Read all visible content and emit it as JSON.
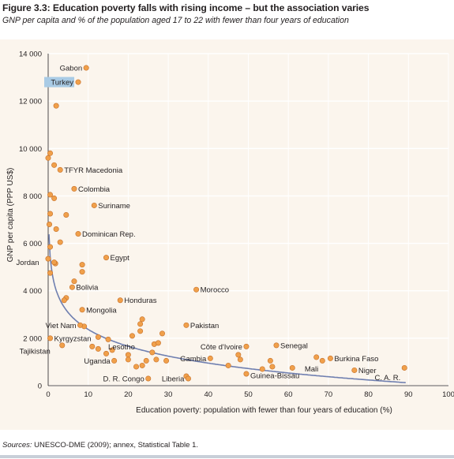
{
  "figure": {
    "title": "Figure 3.3: Education poverty falls with rising income – but the association varies",
    "subtitle": "GNP per capita and % of the population aged 17 to 22 with fewer than four years of education",
    "source_prefix": "Sources:",
    "source_text": " UNESCO-DME (2009); annex, Statistical Table 1."
  },
  "colors": {
    "point_fill": "#f0a04b",
    "point_stroke": "#c6702a",
    "curve": "#6f7fb0",
    "grid": "#ffffff",
    "plot_bg": "#fbf5ed",
    "highlight": "#a9cbe5"
  },
  "chart_data": {
    "type": "scatter",
    "xlabel": "Education poverty: population with fewer than four years of education (%)",
    "ylabel": "GNP per capita (PPP US$)",
    "xlim": [
      0,
      100
    ],
    "ylim": [
      0,
      14000
    ],
    "x_ticks": [
      0,
      10,
      20,
      30,
      40,
      50,
      60,
      70,
      80,
      90,
      100
    ],
    "y_ticks": [
      0,
      2000,
      4000,
      6000,
      8000,
      10000,
      12000,
      14000
    ],
    "y_tick_labels": [
      "0",
      "2 000",
      "4 000",
      "6 000",
      "8 000",
      "10 000",
      "12 000",
      "14 000"
    ],
    "grid": true,
    "legend": "none",
    "fit_curve": "logarithmic",
    "labeled_points": [
      {
        "label": "Gabon",
        "x": 9.5,
        "y": 13400
      },
      {
        "label": "Turkey",
        "x": 7.5,
        "y": 12800,
        "highlight": true
      },
      {
        "label": "TFYR Macedonia",
        "x": 3,
        "y": 9100
      },
      {
        "label": "Colombia",
        "x": 6.5,
        "y": 8300
      },
      {
        "label": "Suriname",
        "x": 11.5,
        "y": 7600
      },
      {
        "label": "Dominican Rep.",
        "x": 7.5,
        "y": 6400
      },
      {
        "label": "Jordan",
        "x": 1.5,
        "y": 5200
      },
      {
        "label": "Egypt",
        "x": 14.5,
        "y": 5400
      },
      {
        "label": "Bolivia",
        "x": 6,
        "y": 4150
      },
      {
        "label": "Morocco",
        "x": 37,
        "y": 4050
      },
      {
        "label": "Honduras",
        "x": 18,
        "y": 3600
      },
      {
        "label": "Mongolia",
        "x": 8.5,
        "y": 3200
      },
      {
        "label": "Pakistan",
        "x": 34.5,
        "y": 2550
      },
      {
        "label": "Viet Nam",
        "x": 8,
        "y": 2550
      },
      {
        "label": "Kyrgyzstan",
        "x": 0.5,
        "y": 2000
      },
      {
        "label": "Tajikistan",
        "x": 3.5,
        "y": 1700
      },
      {
        "label": "Lesotho",
        "x": 15,
        "y": 1950
      },
      {
        "label": "Côte d'Ivoire",
        "x": 49.5,
        "y": 1650
      },
      {
        "label": "Senegal",
        "x": 57,
        "y": 1700
      },
      {
        "label": "Uganda",
        "x": 16.5,
        "y": 1050
      },
      {
        "label": "Gambia",
        "x": 40.5,
        "y": 1150
      },
      {
        "label": "Burkina Faso",
        "x": 70.5,
        "y": 1150
      },
      {
        "label": "Mali",
        "x": 68.5,
        "y": 1050
      },
      {
        "label": "Niger",
        "x": 76.5,
        "y": 650
      },
      {
        "label": "Guinea-Bissau",
        "x": 49.5,
        "y": 500
      },
      {
        "label": "D. R. Congo",
        "x": 25,
        "y": 300
      },
      {
        "label": "Liberia",
        "x": 35,
        "y": 300
      },
      {
        "label": "C. A. R.",
        "x": 89,
        "y": 750
      }
    ],
    "unlabeled_points": [
      {
        "x": 2,
        "y": 11800
      },
      {
        "x": 0.5,
        "y": 9800
      },
      {
        "x": 0,
        "y": 9600
      },
      {
        "x": 1.5,
        "y": 9300
      },
      {
        "x": 0.5,
        "y": 8050
      },
      {
        "x": 1.5,
        "y": 7900
      },
      {
        "x": 0.5,
        "y": 7250
      },
      {
        "x": 4.5,
        "y": 7200
      },
      {
        "x": 0.3,
        "y": 6800
      },
      {
        "x": 2,
        "y": 6600
      },
      {
        "x": 3,
        "y": 6050
      },
      {
        "x": 0.5,
        "y": 5850
      },
      {
        "x": 0,
        "y": 5350
      },
      {
        "x": 1.8,
        "y": 5150
      },
      {
        "x": 8.5,
        "y": 5100
      },
      {
        "x": 8.5,
        "y": 4800
      },
      {
        "x": 0.5,
        "y": 4750
      },
      {
        "x": 6.5,
        "y": 4400
      },
      {
        "x": 4.5,
        "y": 3700
      },
      {
        "x": 4,
        "y": 3600
      },
      {
        "x": 9,
        "y": 2500
      },
      {
        "x": 12.5,
        "y": 2050
      },
      {
        "x": 11,
        "y": 1650
      },
      {
        "x": 12.5,
        "y": 1550
      },
      {
        "x": 14.5,
        "y": 1350
      },
      {
        "x": 16,
        "y": 1500
      },
      {
        "x": 20,
        "y": 1300
      },
      {
        "x": 20,
        "y": 1100
      },
      {
        "x": 21,
        "y": 2100
      },
      {
        "x": 23,
        "y": 2300
      },
      {
        "x": 23,
        "y": 2600
      },
      {
        "x": 23.5,
        "y": 2800
      },
      {
        "x": 26.5,
        "y": 1750
      },
      {
        "x": 27.5,
        "y": 1800
      },
      {
        "x": 28.5,
        "y": 2200
      },
      {
        "x": 26,
        "y": 1400
      },
      {
        "x": 27,
        "y": 1100
      },
      {
        "x": 29.5,
        "y": 1050
      },
      {
        "x": 22,
        "y": 800
      },
      {
        "x": 23.5,
        "y": 850
      },
      {
        "x": 24.5,
        "y": 1050
      },
      {
        "x": 34.5,
        "y": 400
      },
      {
        "x": 45,
        "y": 850
      },
      {
        "x": 48,
        "y": 1100
      },
      {
        "x": 47.5,
        "y": 1300
      },
      {
        "x": 53.5,
        "y": 700
      },
      {
        "x": 55.5,
        "y": 1050
      },
      {
        "x": 56,
        "y": 800
      },
      {
        "x": 61,
        "y": 750
      },
      {
        "x": 67,
        "y": 1200
      }
    ]
  }
}
